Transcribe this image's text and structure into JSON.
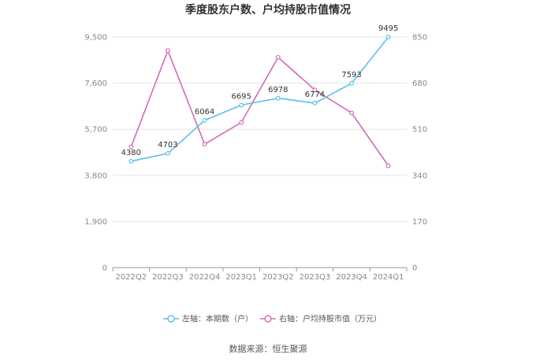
{
  "chart_data": {
    "type": "line",
    "title": "季度股东户数、户均持股市值情况",
    "categories": [
      "2022Q2",
      "2022Q3",
      "2022Q4",
      "2023Q1",
      "2023Q2",
      "2023Q3",
      "2023Q4",
      "2024Q1"
    ],
    "y_left": {
      "ticks": [
        "0",
        "1,900",
        "3,800",
        "5,700",
        "7,600",
        "9,500"
      ],
      "range": [
        0,
        9500
      ]
    },
    "y_right": {
      "ticks": [
        "0",
        "170",
        "340",
        "510",
        "680",
        "850"
      ],
      "range": [
        0,
        850
      ]
    },
    "series": [
      {
        "name": "左轴：本期数（户）",
        "axis": "left",
        "color": "#5bc0eb",
        "values": [
          4380,
          4703,
          6064,
          6695,
          6978,
          6774,
          7593,
          9495
        ],
        "labels": [
          "4380",
          "4703",
          "6064",
          "6695",
          "6978",
          "6774",
          "7593",
          "9495"
        ]
      },
      {
        "name": "右轴：户均持股市值（万元）",
        "axis": "right",
        "color": "#d36bb5",
        "values": [
          445,
          800,
          455,
          535,
          775,
          655,
          570,
          375
        ]
      }
    ],
    "grid": true,
    "legend_position": "bottom"
  },
  "source": "数据来源：恒生聚源"
}
